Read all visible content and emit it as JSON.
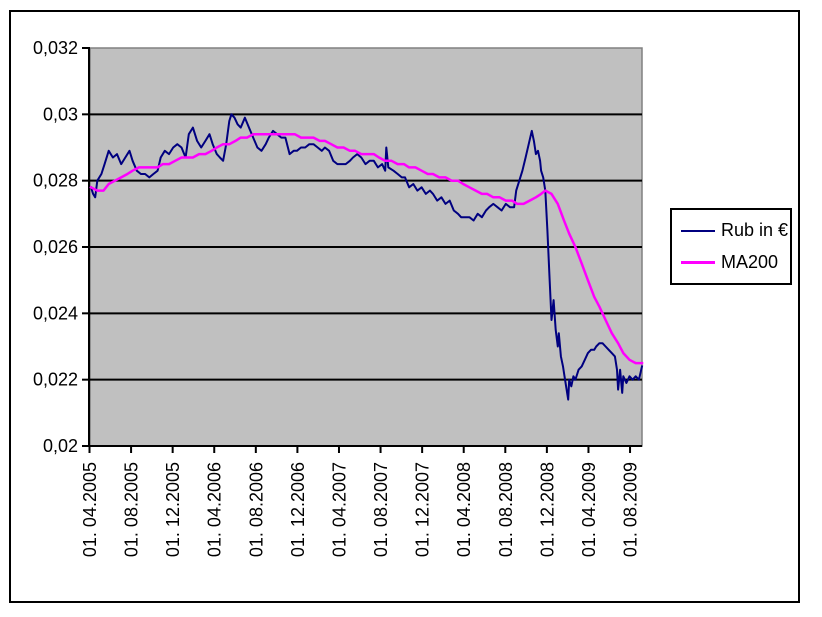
{
  "figure": {
    "kind": "excel-line-chart-screenshot",
    "outer_border_color": "#000000",
    "background": "#FFFFFF"
  },
  "chart_data": {
    "type": "line",
    "title": "",
    "xlabel": "",
    "ylabel": "",
    "plot_background": "#C0C0C0",
    "plot_border_color": "#808080",
    "gridline_color": "#000000",
    "grid": "horizontal-only",
    "y_axis": {
      "min": 0.02,
      "max": 0.032,
      "tick_step": 0.002,
      "decimal_separator": ",",
      "tick_labels": [
        "0,032",
        "0,03",
        "0,028",
        "0,026",
        "0,024",
        "0,022",
        "0,02"
      ],
      "tick_values": [
        0.032,
        0.03,
        0.028,
        0.026,
        0.024,
        0.022,
        0.02
      ],
      "gridline_values": [
        0.03,
        0.028,
        0.026,
        0.024,
        0.022
      ]
    },
    "x_axis": {
      "tick_labels": [
        "01. 04.2005",
        "01. 08.2005",
        "01. 12.2005",
        "01. 04.2006",
        "01. 08.2006",
        "01. 12.2006",
        "01. 04.2007",
        "01. 08.2007",
        "01. 12.2007",
        "01. 04.2008",
        "01. 08.2008",
        "01. 12.2008",
        "01. 04.2009",
        "01. 08.2009"
      ],
      "label_rotation_deg": 90,
      "months_per_tick": 4,
      "point_time_unit": "months since 01.04.2005"
    },
    "legend": {
      "position": "middle-right",
      "entries": [
        "Rub in €",
        "MA200"
      ]
    },
    "series": [
      {
        "name": "Rub in €",
        "color": "#000080",
        "width": 2,
        "points": [
          [
            0.1,
            0.0278
          ],
          [
            0.3,
            0.0276
          ],
          [
            0.5,
            0.0275
          ],
          [
            0.7,
            0.028
          ],
          [
            1.1,
            0.0282
          ],
          [
            1.4,
            0.0285
          ],
          [
            1.8,
            0.0289
          ],
          [
            2.2,
            0.0287
          ],
          [
            2.6,
            0.0288
          ],
          [
            3.0,
            0.0285
          ],
          [
            3.4,
            0.0287
          ],
          [
            3.8,
            0.0289
          ],
          [
            4.1,
            0.0286
          ],
          [
            4.5,
            0.0283
          ],
          [
            4.9,
            0.0282
          ],
          [
            5.3,
            0.0282
          ],
          [
            5.7,
            0.0281
          ],
          [
            6.1,
            0.0282
          ],
          [
            6.5,
            0.0283
          ],
          [
            6.8,
            0.0287
          ],
          [
            7.2,
            0.0289
          ],
          [
            7.6,
            0.0288
          ],
          [
            8.0,
            0.029
          ],
          [
            8.4,
            0.0291
          ],
          [
            8.8,
            0.029
          ],
          [
            9.2,
            0.0287
          ],
          [
            9.5,
            0.0294
          ],
          [
            9.9,
            0.0296
          ],
          [
            10.3,
            0.0292
          ],
          [
            10.7,
            0.029
          ],
          [
            11.1,
            0.0292
          ],
          [
            11.5,
            0.0294
          ],
          [
            11.8,
            0.0291
          ],
          [
            12.2,
            0.0288
          ],
          [
            12.5,
            0.0287
          ],
          [
            12.8,
            0.0286
          ],
          [
            13.1,
            0.0291
          ],
          [
            13.4,
            0.0298
          ],
          [
            13.6,
            0.03
          ],
          [
            13.9,
            0.0299
          ],
          [
            14.2,
            0.0297
          ],
          [
            14.5,
            0.0296
          ],
          [
            14.9,
            0.0299
          ],
          [
            15.3,
            0.0296
          ],
          [
            15.7,
            0.0293
          ],
          [
            16.1,
            0.029
          ],
          [
            16.5,
            0.0289
          ],
          [
            16.9,
            0.0291
          ],
          [
            17.2,
            0.0293
          ],
          [
            17.6,
            0.0295
          ],
          [
            18.0,
            0.0294
          ],
          [
            18.4,
            0.0293
          ],
          [
            18.8,
            0.0293
          ],
          [
            19.2,
            0.0288
          ],
          [
            19.6,
            0.0289
          ],
          [
            19.9,
            0.0289
          ],
          [
            20.3,
            0.029
          ],
          [
            20.7,
            0.029
          ],
          [
            21.1,
            0.0291
          ],
          [
            21.5,
            0.0291
          ],
          [
            21.9,
            0.029
          ],
          [
            22.3,
            0.0289
          ],
          [
            22.6,
            0.029
          ],
          [
            23.0,
            0.0289
          ],
          [
            23.4,
            0.0286
          ],
          [
            23.8,
            0.0285
          ],
          [
            24.2,
            0.0285
          ],
          [
            24.6,
            0.0285
          ],
          [
            25.0,
            0.0286
          ],
          [
            25.3,
            0.0287
          ],
          [
            25.7,
            0.0288
          ],
          [
            26.1,
            0.0287
          ],
          [
            26.5,
            0.0285
          ],
          [
            26.9,
            0.0286
          ],
          [
            27.3,
            0.0286
          ],
          [
            27.7,
            0.0284
          ],
          [
            28.1,
            0.0285
          ],
          [
            28.4,
            0.0283
          ],
          [
            28.5,
            0.029
          ],
          [
            28.7,
            0.0284
          ],
          [
            29.2,
            0.0283
          ],
          [
            29.6,
            0.0282
          ],
          [
            30.0,
            0.0281
          ],
          [
            30.3,
            0.0281
          ],
          [
            30.7,
            0.0278
          ],
          [
            31.1,
            0.0279
          ],
          [
            31.5,
            0.0277
          ],
          [
            31.9,
            0.0278
          ],
          [
            32.3,
            0.0276
          ],
          [
            32.7,
            0.0277
          ],
          [
            33.0,
            0.0276
          ],
          [
            33.4,
            0.0274
          ],
          [
            33.8,
            0.0275
          ],
          [
            34.2,
            0.0273
          ],
          [
            34.6,
            0.0274
          ],
          [
            35.0,
            0.0271
          ],
          [
            35.4,
            0.027
          ],
          [
            35.7,
            0.0269
          ],
          [
            36.1,
            0.0269
          ],
          [
            36.5,
            0.0269
          ],
          [
            36.9,
            0.0268
          ],
          [
            37.3,
            0.027
          ],
          [
            37.7,
            0.0269
          ],
          [
            38.1,
            0.0271
          ],
          [
            38.4,
            0.0272
          ],
          [
            38.8,
            0.0273
          ],
          [
            39.2,
            0.0272
          ],
          [
            39.6,
            0.0271
          ],
          [
            40.0,
            0.0273
          ],
          [
            40.4,
            0.0272
          ],
          [
            40.8,
            0.0272
          ],
          [
            41.0,
            0.0277
          ],
          [
            41.3,
            0.028
          ],
          [
            41.6,
            0.0283
          ],
          [
            41.9,
            0.0287
          ],
          [
            42.2,
            0.0291
          ],
          [
            42.5,
            0.0295
          ],
          [
            42.7,
            0.0292
          ],
          [
            42.9,
            0.0288
          ],
          [
            43.1,
            0.0289
          ],
          [
            43.3,
            0.0286
          ],
          [
            43.4,
            0.0283
          ],
          [
            43.6,
            0.0281
          ],
          [
            43.8,
            0.0277
          ],
          [
            44.0,
            0.0265
          ],
          [
            44.2,
            0.0251
          ],
          [
            44.4,
            0.0238
          ],
          [
            44.6,
            0.0244
          ],
          [
            44.8,
            0.0235
          ],
          [
            45.0,
            0.023
          ],
          [
            45.1,
            0.0234
          ],
          [
            45.3,
            0.0227
          ],
          [
            45.5,
            0.0224
          ],
          [
            45.6,
            0.0222
          ],
          [
            45.8,
            0.0218
          ],
          [
            46.0,
            0.0214
          ],
          [
            46.1,
            0.022
          ],
          [
            46.3,
            0.0218
          ],
          [
            46.5,
            0.0221
          ],
          [
            46.7,
            0.022
          ],
          [
            47.0,
            0.0223
          ],
          [
            47.3,
            0.0224
          ],
          [
            47.6,
            0.0226
          ],
          [
            47.9,
            0.0228
          ],
          [
            48.2,
            0.0229
          ],
          [
            48.5,
            0.0229
          ],
          [
            48.7,
            0.023
          ],
          [
            49.0,
            0.0231
          ],
          [
            49.3,
            0.0231
          ],
          [
            49.6,
            0.023
          ],
          [
            49.9,
            0.0229
          ],
          [
            50.2,
            0.0228
          ],
          [
            50.5,
            0.0227
          ],
          [
            50.7,
            0.0223
          ],
          [
            50.8,
            0.0217
          ],
          [
            51.0,
            0.0223
          ],
          [
            51.2,
            0.0216
          ],
          [
            51.3,
            0.0221
          ],
          [
            51.6,
            0.0219
          ],
          [
            51.9,
            0.0221
          ],
          [
            52.2,
            0.022
          ],
          [
            52.5,
            0.0221
          ],
          [
            52.8,
            0.022
          ],
          [
            53.1,
            0.0224
          ]
        ]
      },
      {
        "name": "MA200",
        "color": "#FF00FF",
        "width": 2.5,
        "points": [
          [
            0.1,
            0.0278
          ],
          [
            0.7,
            0.0277
          ],
          [
            1.3,
            0.0277
          ],
          [
            1.8,
            0.0279
          ],
          [
            2.4,
            0.028
          ],
          [
            3.0,
            0.0281
          ],
          [
            3.6,
            0.0282
          ],
          [
            4.1,
            0.0283
          ],
          [
            4.7,
            0.0284
          ],
          [
            5.3,
            0.0284
          ],
          [
            5.9,
            0.0284
          ],
          [
            6.5,
            0.0284
          ],
          [
            7.0,
            0.0285
          ],
          [
            7.6,
            0.0285
          ],
          [
            8.2,
            0.0286
          ],
          [
            8.8,
            0.0287
          ],
          [
            9.3,
            0.0287
          ],
          [
            9.9,
            0.0287
          ],
          [
            10.5,
            0.0288
          ],
          [
            11.1,
            0.0288
          ],
          [
            11.7,
            0.0289
          ],
          [
            12.2,
            0.029
          ],
          [
            12.8,
            0.0291
          ],
          [
            13.4,
            0.0291
          ],
          [
            14.0,
            0.0292
          ],
          [
            14.5,
            0.0293
          ],
          [
            15.1,
            0.0293
          ],
          [
            15.7,
            0.0294
          ],
          [
            16.3,
            0.0294
          ],
          [
            16.9,
            0.0294
          ],
          [
            17.4,
            0.0294
          ],
          [
            18.0,
            0.0294
          ],
          [
            18.6,
            0.0294
          ],
          [
            19.2,
            0.0294
          ],
          [
            19.7,
            0.0294
          ],
          [
            20.3,
            0.0293
          ],
          [
            20.9,
            0.0293
          ],
          [
            21.5,
            0.0293
          ],
          [
            22.1,
            0.0292
          ],
          [
            22.6,
            0.0292
          ],
          [
            23.2,
            0.0291
          ],
          [
            23.8,
            0.029
          ],
          [
            24.4,
            0.029
          ],
          [
            25.0,
            0.0289
          ],
          [
            25.5,
            0.0289
          ],
          [
            26.1,
            0.0288
          ],
          [
            26.7,
            0.0288
          ],
          [
            27.3,
            0.0288
          ],
          [
            27.8,
            0.0287
          ],
          [
            28.4,
            0.0286
          ],
          [
            29.0,
            0.0286
          ],
          [
            29.6,
            0.0285
          ],
          [
            30.2,
            0.0285
          ],
          [
            30.7,
            0.0284
          ],
          [
            31.3,
            0.0284
          ],
          [
            31.9,
            0.0283
          ],
          [
            32.5,
            0.0282
          ],
          [
            33.0,
            0.0282
          ],
          [
            33.6,
            0.0281
          ],
          [
            34.2,
            0.0281
          ],
          [
            34.8,
            0.028
          ],
          [
            35.4,
            0.028
          ],
          [
            35.9,
            0.0279
          ],
          [
            36.5,
            0.0278
          ],
          [
            37.1,
            0.0277
          ],
          [
            37.7,
            0.0276
          ],
          [
            38.2,
            0.0276
          ],
          [
            38.8,
            0.0275
          ],
          [
            39.4,
            0.0275
          ],
          [
            40.0,
            0.0274
          ],
          [
            40.6,
            0.0274
          ],
          [
            41.1,
            0.0273
          ],
          [
            41.7,
            0.0273
          ],
          [
            42.3,
            0.0274
          ],
          [
            42.9,
            0.0275
          ],
          [
            43.4,
            0.0276
          ],
          [
            43.8,
            0.0277
          ],
          [
            44.4,
            0.0276
          ],
          [
            45.0,
            0.0273
          ],
          [
            45.6,
            0.0268
          ],
          [
            46.1,
            0.0264
          ],
          [
            46.7,
            0.026
          ],
          [
            47.3,
            0.0255
          ],
          [
            47.9,
            0.025
          ],
          [
            48.5,
            0.0245
          ],
          [
            49.0,
            0.0242
          ],
          [
            49.6,
            0.0238
          ],
          [
            50.2,
            0.0234
          ],
          [
            50.8,
            0.0231
          ],
          [
            51.3,
            0.0228
          ],
          [
            51.9,
            0.0226
          ],
          [
            52.5,
            0.0225
          ],
          [
            53.1,
            0.0225
          ]
        ]
      }
    ]
  }
}
